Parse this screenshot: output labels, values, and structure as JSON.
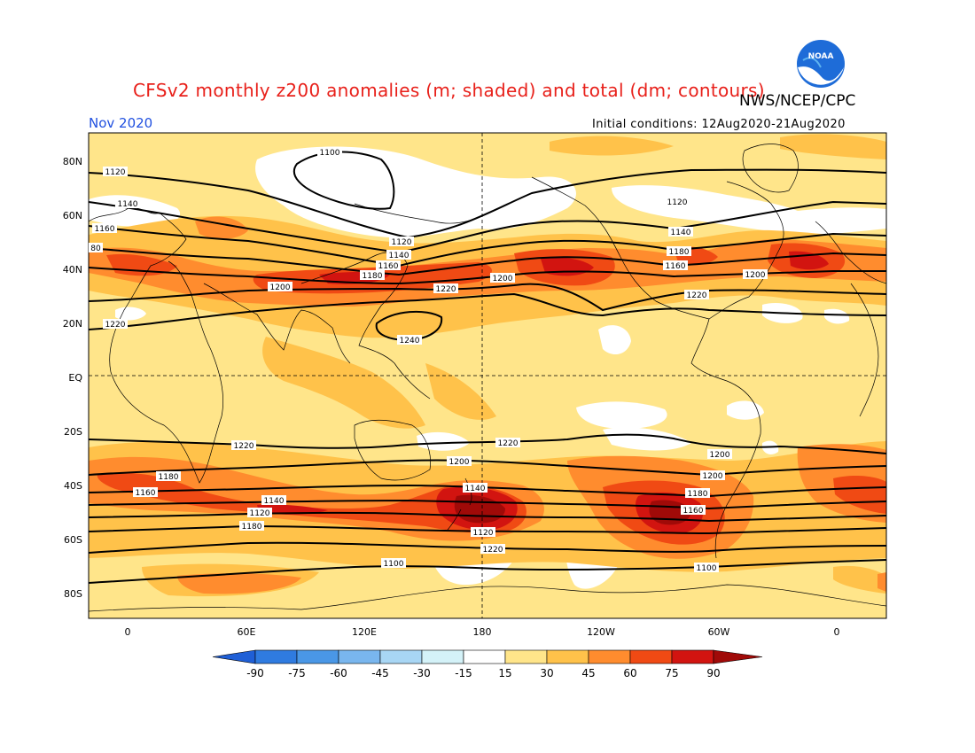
{
  "title": "CFSv2 monthly z200 anomalies (m; shaded) and total (dm; contours)",
  "agency": "NWS/NCEP/CPC",
  "month": "Nov 2020",
  "initial_conditions": "Initial conditions: 12Aug2020-21Aug2020",
  "logo_text": "NOAA",
  "lat_labels": [
    "80N",
    "60N",
    "40N",
    "20N",
    "EQ",
    "20S",
    "40S",
    "60S",
    "80S"
  ],
  "lon_labels": [
    "0",
    "60E",
    "120E",
    "180",
    "120W",
    "60W",
    "0"
  ],
  "colorbar": {
    "ticks": [
      "-90",
      "-75",
      "-60",
      "-45",
      "-30",
      "-15",
      "15",
      "30",
      "45",
      "60",
      "75",
      "90"
    ],
    "colors": [
      "#1f5fd6",
      "#2f7be0",
      "#4a97e6",
      "#79b6ee",
      "#a8d6f4",
      "#d4f2f8",
      "#ffffff",
      "#ffe58a",
      "#ffc24a",
      "#ff8c2e",
      "#f04a14",
      "#d21410",
      "#a00a08"
    ]
  },
  "contour_labels": [
    {
      "text": "1100",
      "id": "c1"
    },
    {
      "text": "1120",
      "id": "c2"
    },
    {
      "text": "1140",
      "id": "c3"
    },
    {
      "text": "1160",
      "id": "c4"
    },
    {
      "text": "80",
      "id": "c5"
    },
    {
      "text": "1120",
      "id": "c6"
    },
    {
      "text": "1140",
      "id": "c7"
    },
    {
      "text": "1160",
      "id": "c8"
    },
    {
      "text": "1180",
      "id": "c9"
    },
    {
      "text": "1200",
      "id": "c10"
    },
    {
      "text": "1220",
      "id": "c11"
    },
    {
      "text": "1200",
      "id": "c12"
    },
    {
      "text": "1240",
      "id": "c13"
    },
    {
      "text": "1220",
      "id": "c14"
    },
    {
      "text": "1120",
      "id": "c15"
    },
    {
      "text": "1140",
      "id": "c16"
    },
    {
      "text": "1180",
      "id": "c17"
    },
    {
      "text": "1160",
      "id": "c18"
    },
    {
      "text": "1200",
      "id": "c19"
    },
    {
      "text": "1220",
      "id": "c20"
    },
    {
      "text": "1220",
      "id": "c21"
    },
    {
      "text": "1220",
      "id": "c22"
    },
    {
      "text": "1200",
      "id": "c23"
    },
    {
      "text": "1180",
      "id": "c24"
    },
    {
      "text": "1200",
      "id": "c25"
    },
    {
      "text": "1160",
      "id": "c26"
    },
    {
      "text": "1140",
      "id": "c27"
    },
    {
      "text": "1120",
      "id": "c28"
    },
    {
      "text": "1180",
      "id": "c29"
    },
    {
      "text": "1140",
      "id": "c30"
    },
    {
      "text": "1120",
      "id": "c31"
    },
    {
      "text": "1220",
      "id": "c32"
    },
    {
      "text": "1200",
      "id": "c33"
    },
    {
      "text": "1180",
      "id": "c34"
    },
    {
      "text": "1160",
      "id": "c35"
    },
    {
      "text": "1100",
      "id": "c36"
    },
    {
      "text": "1100",
      "id": "c37"
    }
  ]
}
